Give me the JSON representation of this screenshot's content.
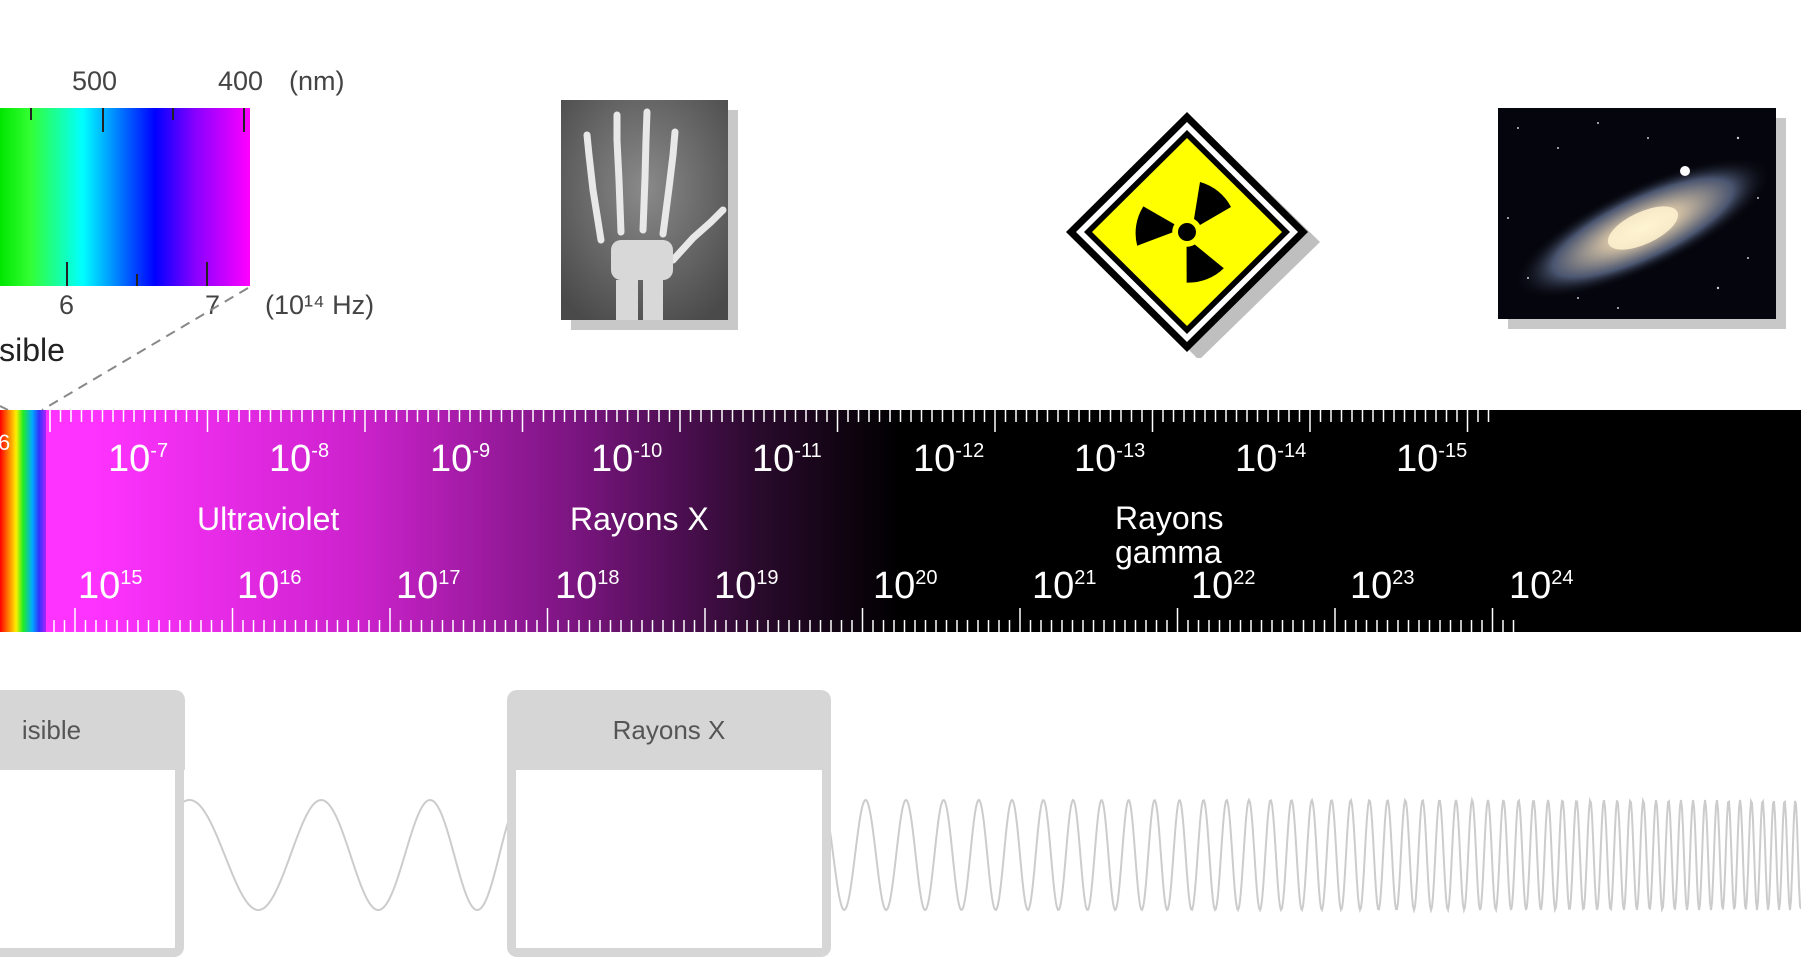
{
  "visible_spectrum": {
    "wavelength_ticks": [
      "500",
      "400"
    ],
    "wavelength_unit": "(nm)",
    "frequency_ticks": [
      "6",
      "7"
    ],
    "frequency_unit": "(10¹⁴ Hz)",
    "label": "isible"
  },
  "band": {
    "left_cut_label": "6",
    "wavelength_base": "10",
    "wavelength_exponents": [
      "-7",
      "-8",
      "-9",
      "-10",
      "-11",
      "-12",
      "-13",
      "-14",
      "-15"
    ],
    "frequency_base": "10",
    "frequency_exponents": [
      "15",
      "16",
      "17",
      "18",
      "19",
      "20",
      "21",
      "22",
      "23",
      "24"
    ],
    "regions": {
      "ultraviolet": "Ultraviolet",
      "xrays": "Rayons X",
      "gamma_line1": "Rayons",
      "gamma_line2": "gamma"
    }
  },
  "images": {
    "hand_xray": "hand-xray-photo",
    "radiation_sign": "radiation-hazard-icon",
    "galaxy": "galaxy-photo"
  },
  "tabs": {
    "visible": "isible",
    "xrays": "Rayons X"
  },
  "colors": {
    "band_start": "#ff33ff",
    "band_end": "#000000",
    "hazard_yellow": "#ffff00",
    "tab_gray": "#d6d6d6",
    "wave_gray": "#cccccc"
  }
}
